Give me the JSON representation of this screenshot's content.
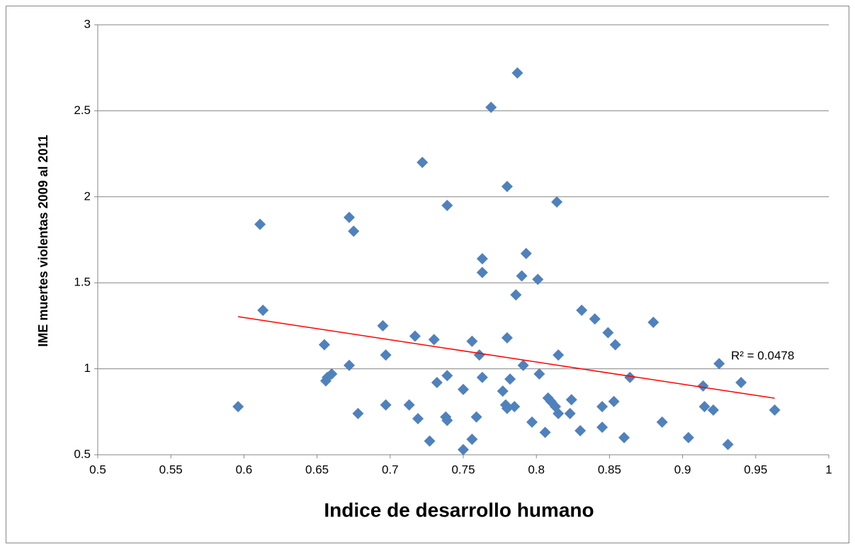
{
  "chart_data": {
    "type": "scatter",
    "x_label": "Indice de desarrollo humano",
    "y_label": "IME muertes violentas 2009 al 2011",
    "annotation": "R² = 0.0478",
    "color": "#4f81bd",
    "xlim": [
      0.5,
      1
    ],
    "xticks": [
      0.5,
      0.55,
      0.6,
      0.65,
      0.7,
      0.75,
      0.8,
      0.85,
      0.9,
      0.95,
      1
    ],
    "ylim": [
      0.5,
      3
    ],
    "yticks": [
      0.5,
      1,
      1.5,
      2,
      2.5,
      3
    ],
    "grid": true,
    "x": [
      0.596,
      0.611,
      0.613,
      0.655,
      0.656,
      0.657,
      0.66,
      0.672,
      0.672,
      0.675,
      0.678,
      0.695,
      0.697,
      0.697,
      0.713,
      0.717,
      0.719,
      0.722,
      0.727,
      0.73,
      0.732,
      0.738,
      0.739,
      0.739,
      0.739,
      0.75,
      0.75,
      0.756,
      0.756,
      0.759,
      0.761,
      0.763,
      0.763,
      0.763,
      0.769,
      0.777,
      0.779,
      0.78,
      0.78,
      0.78,
      0.782,
      0.785,
      0.786,
      0.787,
      0.79,
      0.791,
      0.793,
      0.797,
      0.801,
      0.802,
      0.806,
      0.808,
      0.81,
      0.813,
      0.814,
      0.815,
      0.815,
      0.823,
      0.824,
      0.83,
      0.831,
      0.84,
      0.845,
      0.845,
      0.849,
      0.853,
      0.854,
      0.86,
      0.864,
      0.88,
      0.886,
      0.904,
      0.914,
      0.915,
      0.921,
      0.925,
      0.931,
      0.94,
      0.963
    ],
    "y": [
      0.78,
      1.84,
      1.34,
      1.14,
      0.93,
      0.95,
      0.97,
      1.88,
      1.02,
      1.8,
      0.74,
      1.25,
      1.08,
      0.79,
      0.79,
      1.19,
      0.71,
      2.2,
      0.58,
      1.17,
      0.92,
      0.72,
      0.96,
      0.7,
      1.95,
      0.88,
      0.53,
      0.59,
      1.16,
      0.72,
      1.08,
      1.64,
      1.56,
      0.95,
      2.52,
      0.87,
      0.79,
      0.77,
      1.18,
      2.06,
      0.94,
      0.78,
      1.43,
      2.72,
      1.54,
      1.02,
      1.67,
      0.69,
      1.52,
      0.97,
      0.63,
      0.83,
      0.81,
      0.78,
      1.97,
      1.08,
      0.74,
      0.74,
      0.82,
      0.64,
      1.34,
      1.29,
      0.78,
      0.66,
      1.21,
      0.81,
      1.14,
      0.6,
      0.95,
      1.27,
      0.69,
      0.6,
      0.9,
      0.78,
      0.76,
      1.03,
      0.56,
      0.92,
      0.76
    ],
    "trendline": {
      "x": [
        0.596,
        0.963
      ],
      "y": [
        1.303,
        0.829
      ],
      "color": "#ff0000"
    }
  }
}
